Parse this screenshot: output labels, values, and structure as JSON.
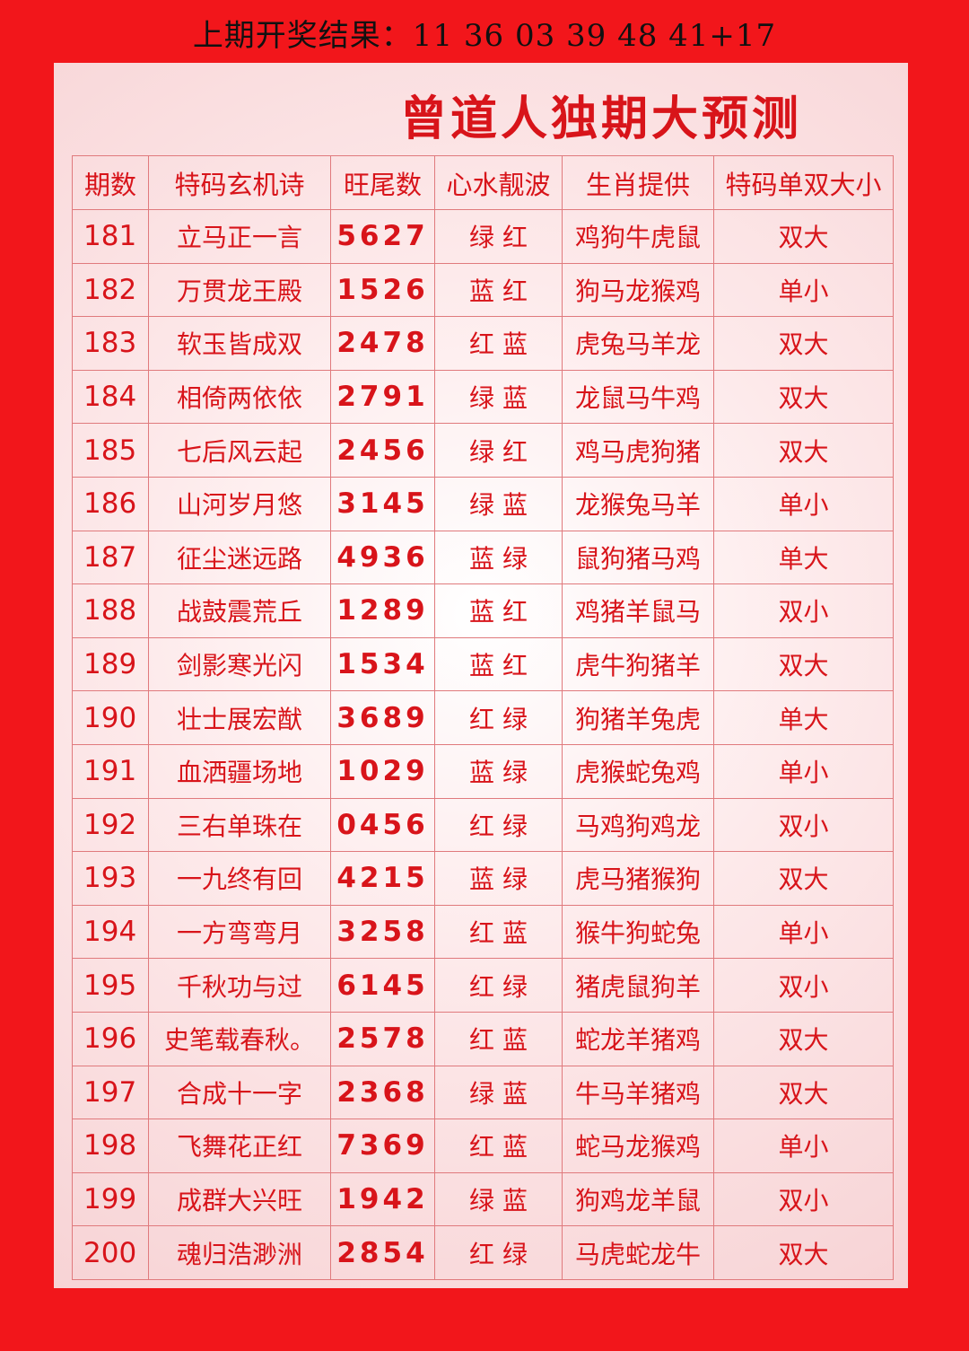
{
  "header": {
    "result": "上期开奖结果：11 36 03 39 48 41+17",
    "title": "曾道人独期大预测"
  },
  "table": {
    "columns": [
      "期数",
      "特码玄机诗",
      "旺尾数",
      "心水靓波",
      "生肖提供",
      "特码单双大小"
    ],
    "rows": [
      [
        "181",
        "立马正一言",
        "5627",
        "绿 红",
        "鸡狗牛虎鼠",
        "双大"
      ],
      [
        "182",
        "万贯龙王殿",
        "1526",
        "蓝 红",
        "狗马龙猴鸡",
        "单小"
      ],
      [
        "183",
        "软玉皆成双",
        "2478",
        "红 蓝",
        "虎兔马羊龙",
        "双大"
      ],
      [
        "184",
        "相倚两依依",
        "2791",
        "绿 蓝",
        "龙鼠马牛鸡",
        "双大"
      ],
      [
        "185",
        "七后风云起",
        "2456",
        "绿 红",
        "鸡马虎狗猪",
        "双大"
      ],
      [
        "186",
        "山河岁月悠",
        "3145",
        "绿 蓝",
        "龙猴兔马羊",
        "单小"
      ],
      [
        "187",
        "征尘迷远路",
        "4936",
        "蓝 绿",
        "鼠狗猪马鸡",
        "单大"
      ],
      [
        "188",
        "战鼓震荒丘",
        "1289",
        "蓝 红",
        "鸡猪羊鼠马",
        "双小"
      ],
      [
        "189",
        "剑影寒光闪",
        "1534",
        "蓝 红",
        "虎牛狗猪羊",
        "双大"
      ],
      [
        "190",
        "壮士展宏猷",
        "3689",
        "红 绿",
        "狗猪羊兔虎",
        "单大"
      ],
      [
        "191",
        "血洒疆场地",
        "1029",
        "蓝 绿",
        "虎猴蛇兔鸡",
        "单小"
      ],
      [
        "192",
        "三右单珠在",
        "0456",
        "红 绿",
        "马鸡狗鸡龙",
        "双小"
      ],
      [
        "193",
        "一九终有回",
        "4215",
        "蓝 绿",
        "虎马猪猴狗",
        "双大"
      ],
      [
        "194",
        "一方弯弯月",
        "3258",
        "红 蓝",
        "猴牛狗蛇兔",
        "单小"
      ],
      [
        "195",
        "千秋功与过",
        "6145",
        "红 绿",
        "猪虎鼠狗羊",
        "双小"
      ],
      [
        "196",
        "史笔载春秋。",
        "2578",
        "红 蓝",
        "蛇龙羊猪鸡",
        "双大"
      ],
      [
        "197",
        "合成十一字",
        "2368",
        "绿 蓝",
        "牛马羊猪鸡",
        "双大"
      ],
      [
        "198",
        "飞舞花正红",
        "7369",
        "红 蓝",
        "蛇马龙猴鸡",
        "单小"
      ],
      [
        "199",
        "成群大兴旺",
        "1942",
        "绿 蓝",
        "狗鸡龙羊鼠",
        "双小"
      ],
      [
        "200",
        "魂归浩渺洲",
        "2854",
        "红 绿",
        "马虎蛇龙牛",
        "双大"
      ]
    ]
  }
}
